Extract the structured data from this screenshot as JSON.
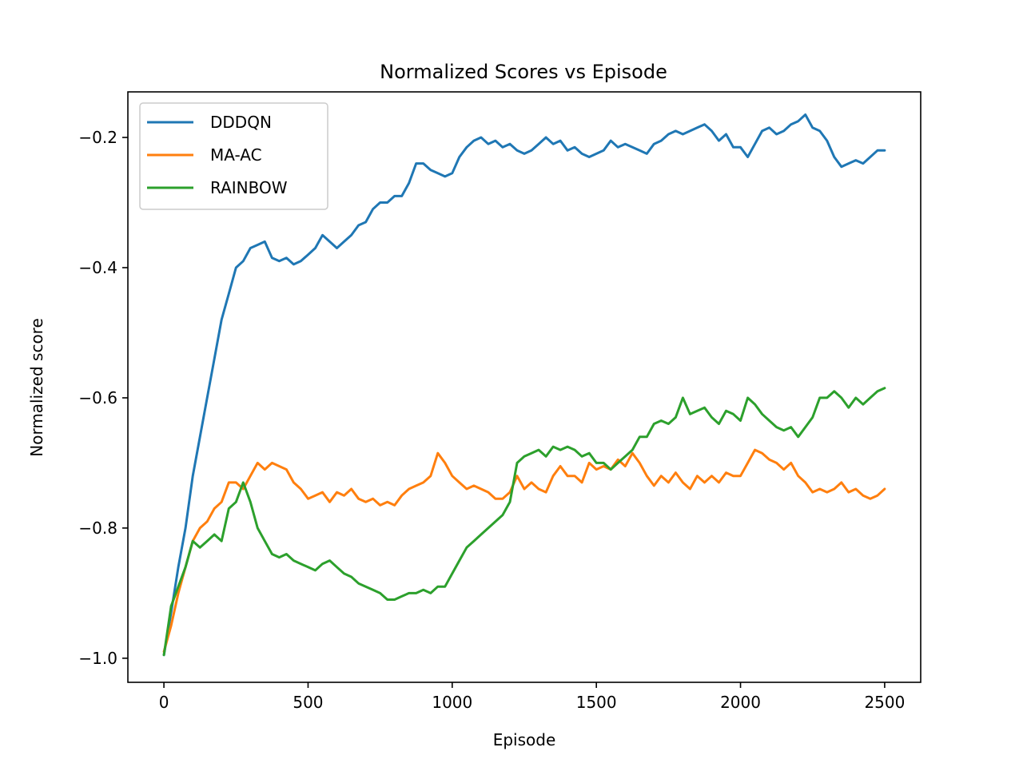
{
  "chart_data": {
    "type": "line",
    "title": "Normalized Scores vs Episode",
    "xlabel": "Episode",
    "ylabel": "Normalized score",
    "xlim": [
      -125,
      2625
    ],
    "ylim": [
      -1.037,
      -0.13
    ],
    "xticks": [
      0,
      500,
      1000,
      1500,
      2000,
      2500
    ],
    "xtick_labels": [
      "0",
      "500",
      "1000",
      "1500",
      "2000",
      "2500"
    ],
    "yticks": [
      -1.0,
      -0.8,
      -0.6,
      -0.4,
      -0.2
    ],
    "ytick_labels": [
      "−1.0",
      "−0.8",
      "−0.6",
      "−0.4",
      "−0.2"
    ],
    "grid": false,
    "legend_position": "upper-left",
    "series": [
      {
        "name": "DDDQN",
        "color": "#1f77b4",
        "points": [
          [
            0,
            -0.995
          ],
          [
            25,
            -0.93
          ],
          [
            50,
            -0.86
          ],
          [
            75,
            -0.8
          ],
          [
            100,
            -0.72
          ],
          [
            125,
            -0.66
          ],
          [
            150,
            -0.6
          ],
          [
            175,
            -0.54
          ],
          [
            200,
            -0.48
          ],
          [
            225,
            -0.44
          ],
          [
            250,
            -0.4
          ],
          [
            275,
            -0.39
          ],
          [
            300,
            -0.37
          ],
          [
            325,
            -0.365
          ],
          [
            350,
            -0.36
          ],
          [
            375,
            -0.385
          ],
          [
            400,
            -0.39
          ],
          [
            425,
            -0.385
          ],
          [
            450,
            -0.395
          ],
          [
            475,
            -0.39
          ],
          [
            500,
            -0.38
          ],
          [
            525,
            -0.37
          ],
          [
            550,
            -0.35
          ],
          [
            575,
            -0.36
          ],
          [
            600,
            -0.37
          ],
          [
            625,
            -0.36
          ],
          [
            650,
            -0.35
          ],
          [
            675,
            -0.335
          ],
          [
            700,
            -0.33
          ],
          [
            725,
            -0.31
          ],
          [
            750,
            -0.3
          ],
          [
            775,
            -0.3
          ],
          [
            800,
            -0.29
          ],
          [
            825,
            -0.29
          ],
          [
            850,
            -0.27
          ],
          [
            875,
            -0.24
          ],
          [
            900,
            -0.24
          ],
          [
            925,
            -0.25
          ],
          [
            950,
            -0.255
          ],
          [
            975,
            -0.26
          ],
          [
            1000,
            -0.255
          ],
          [
            1025,
            -0.23
          ],
          [
            1050,
            -0.215
          ],
          [
            1075,
            -0.205
          ],
          [
            1100,
            -0.2
          ],
          [
            1125,
            -0.21
          ],
          [
            1150,
            -0.205
          ],
          [
            1175,
            -0.215
          ],
          [
            1200,
            -0.21
          ],
          [
            1225,
            -0.22
          ],
          [
            1250,
            -0.225
          ],
          [
            1275,
            -0.22
          ],
          [
            1300,
            -0.21
          ],
          [
            1325,
            -0.2
          ],
          [
            1350,
            -0.21
          ],
          [
            1375,
            -0.205
          ],
          [
            1400,
            -0.22
          ],
          [
            1425,
            -0.215
          ],
          [
            1450,
            -0.225
          ],
          [
            1475,
            -0.23
          ],
          [
            1500,
            -0.225
          ],
          [
            1525,
            -0.22
          ],
          [
            1550,
            -0.205
          ],
          [
            1575,
            -0.215
          ],
          [
            1600,
            -0.21
          ],
          [
            1625,
            -0.215
          ],
          [
            1650,
            -0.22
          ],
          [
            1675,
            -0.225
          ],
          [
            1700,
            -0.21
          ],
          [
            1725,
            -0.205
          ],
          [
            1750,
            -0.195
          ],
          [
            1775,
            -0.19
          ],
          [
            1800,
            -0.195
          ],
          [
            1825,
            -0.19
          ],
          [
            1850,
            -0.185
          ],
          [
            1875,
            -0.18
          ],
          [
            1900,
            -0.19
          ],
          [
            1925,
            -0.205
          ],
          [
            1950,
            -0.195
          ],
          [
            1975,
            -0.215
          ],
          [
            2000,
            -0.215
          ],
          [
            2025,
            -0.23
          ],
          [
            2050,
            -0.21
          ],
          [
            2075,
            -0.19
          ],
          [
            2100,
            -0.185
          ],
          [
            2125,
            -0.195
          ],
          [
            2150,
            -0.19
          ],
          [
            2175,
            -0.18
          ],
          [
            2200,
            -0.175
          ],
          [
            2225,
            -0.165
          ],
          [
            2250,
            -0.185
          ],
          [
            2275,
            -0.19
          ],
          [
            2300,
            -0.205
          ],
          [
            2325,
            -0.23
          ],
          [
            2350,
            -0.245
          ],
          [
            2375,
            -0.24
          ],
          [
            2400,
            -0.235
          ],
          [
            2425,
            -0.24
          ],
          [
            2450,
            -0.23
          ],
          [
            2475,
            -0.22
          ],
          [
            2500,
            -0.22
          ]
        ]
      },
      {
        "name": "MA-AC",
        "color": "#ff7f0e",
        "points": [
          [
            0,
            -0.99
          ],
          [
            25,
            -0.95
          ],
          [
            50,
            -0.9
          ],
          [
            75,
            -0.86
          ],
          [
            100,
            -0.82
          ],
          [
            125,
            -0.8
          ],
          [
            150,
            -0.79
          ],
          [
            175,
            -0.77
          ],
          [
            200,
            -0.76
          ],
          [
            225,
            -0.73
          ],
          [
            250,
            -0.73
          ],
          [
            275,
            -0.74
          ],
          [
            300,
            -0.72
          ],
          [
            325,
            -0.7
          ],
          [
            350,
            -0.71
          ],
          [
            375,
            -0.7
          ],
          [
            400,
            -0.705
          ],
          [
            425,
            -0.71
          ],
          [
            450,
            -0.73
          ],
          [
            475,
            -0.74
          ],
          [
            500,
            -0.755
          ],
          [
            525,
            -0.75
          ],
          [
            550,
            -0.745
          ],
          [
            575,
            -0.76
          ],
          [
            600,
            -0.745
          ],
          [
            625,
            -0.75
          ],
          [
            650,
            -0.74
          ],
          [
            675,
            -0.755
          ],
          [
            700,
            -0.76
          ],
          [
            725,
            -0.755
          ],
          [
            750,
            -0.765
          ],
          [
            775,
            -0.76
          ],
          [
            800,
            -0.765
          ],
          [
            825,
            -0.75
          ],
          [
            850,
            -0.74
          ],
          [
            875,
            -0.735
          ],
          [
            900,
            -0.73
          ],
          [
            925,
            -0.72
          ],
          [
            950,
            -0.685
          ],
          [
            975,
            -0.7
          ],
          [
            1000,
            -0.72
          ],
          [
            1025,
            -0.73
          ],
          [
            1050,
            -0.74
          ],
          [
            1075,
            -0.735
          ],
          [
            1100,
            -0.74
          ],
          [
            1125,
            -0.745
          ],
          [
            1150,
            -0.755
          ],
          [
            1175,
            -0.755
          ],
          [
            1200,
            -0.745
          ],
          [
            1225,
            -0.72
          ],
          [
            1250,
            -0.74
          ],
          [
            1275,
            -0.73
          ],
          [
            1300,
            -0.74
          ],
          [
            1325,
            -0.745
          ],
          [
            1350,
            -0.72
          ],
          [
            1375,
            -0.705
          ],
          [
            1400,
            -0.72
          ],
          [
            1425,
            -0.72
          ],
          [
            1450,
            -0.73
          ],
          [
            1475,
            -0.7
          ],
          [
            1500,
            -0.71
          ],
          [
            1525,
            -0.705
          ],
          [
            1550,
            -0.71
          ],
          [
            1575,
            -0.695
          ],
          [
            1600,
            -0.705
          ],
          [
            1625,
            -0.685
          ],
          [
            1650,
            -0.7
          ],
          [
            1675,
            -0.72
          ],
          [
            1700,
            -0.735
          ],
          [
            1725,
            -0.72
          ],
          [
            1750,
            -0.73
          ],
          [
            1775,
            -0.715
          ],
          [
            1800,
            -0.73
          ],
          [
            1825,
            -0.74
          ],
          [
            1850,
            -0.72
          ],
          [
            1875,
            -0.73
          ],
          [
            1900,
            -0.72
          ],
          [
            1925,
            -0.73
          ],
          [
            1950,
            -0.715
          ],
          [
            1975,
            -0.72
          ],
          [
            2000,
            -0.72
          ],
          [
            2025,
            -0.7
          ],
          [
            2050,
            -0.68
          ],
          [
            2075,
            -0.685
          ],
          [
            2100,
            -0.695
          ],
          [
            2125,
            -0.7
          ],
          [
            2150,
            -0.71
          ],
          [
            2175,
            -0.7
          ],
          [
            2200,
            -0.72
          ],
          [
            2225,
            -0.73
          ],
          [
            2250,
            -0.745
          ],
          [
            2275,
            -0.74
          ],
          [
            2300,
            -0.745
          ],
          [
            2325,
            -0.74
          ],
          [
            2350,
            -0.73
          ],
          [
            2375,
            -0.745
          ],
          [
            2400,
            -0.74
          ],
          [
            2425,
            -0.75
          ],
          [
            2450,
            -0.755
          ],
          [
            2475,
            -0.75
          ],
          [
            2500,
            -0.74
          ]
        ]
      },
      {
        "name": "RAINBOW",
        "color": "#2ca02c",
        "points": [
          [
            0,
            -0.995
          ],
          [
            25,
            -0.92
          ],
          [
            50,
            -0.89
          ],
          [
            75,
            -0.86
          ],
          [
            100,
            -0.82
          ],
          [
            125,
            -0.83
          ],
          [
            150,
            -0.82
          ],
          [
            175,
            -0.81
          ],
          [
            200,
            -0.82
          ],
          [
            225,
            -0.77
          ],
          [
            250,
            -0.76
          ],
          [
            275,
            -0.73
          ],
          [
            300,
            -0.76
          ],
          [
            325,
            -0.8
          ],
          [
            350,
            -0.82
          ],
          [
            375,
            -0.84
          ],
          [
            400,
            -0.845
          ],
          [
            425,
            -0.84
          ],
          [
            450,
            -0.85
          ],
          [
            475,
            -0.855
          ],
          [
            500,
            -0.86
          ],
          [
            525,
            -0.865
          ],
          [
            550,
            -0.855
          ],
          [
            575,
            -0.85
          ],
          [
            600,
            -0.86
          ],
          [
            625,
            -0.87
          ],
          [
            650,
            -0.875
          ],
          [
            675,
            -0.885
          ],
          [
            700,
            -0.89
          ],
          [
            725,
            -0.895
          ],
          [
            750,
            -0.9
          ],
          [
            775,
            -0.91
          ],
          [
            800,
            -0.91
          ],
          [
            825,
            -0.905
          ],
          [
            850,
            -0.9
          ],
          [
            875,
            -0.9
          ],
          [
            900,
            -0.895
          ],
          [
            925,
            -0.9
          ],
          [
            950,
            -0.89
          ],
          [
            975,
            -0.89
          ],
          [
            1000,
            -0.87
          ],
          [
            1025,
            -0.85
          ],
          [
            1050,
            -0.83
          ],
          [
            1075,
            -0.82
          ],
          [
            1100,
            -0.81
          ],
          [
            1125,
            -0.8
          ],
          [
            1150,
            -0.79
          ],
          [
            1175,
            -0.78
          ],
          [
            1200,
            -0.76
          ],
          [
            1225,
            -0.7
          ],
          [
            1250,
            -0.69
          ],
          [
            1275,
            -0.685
          ],
          [
            1300,
            -0.68
          ],
          [
            1325,
            -0.69
          ],
          [
            1350,
            -0.675
          ],
          [
            1375,
            -0.68
          ],
          [
            1400,
            -0.675
          ],
          [
            1425,
            -0.68
          ],
          [
            1450,
            -0.69
          ],
          [
            1475,
            -0.685
          ],
          [
            1500,
            -0.7
          ],
          [
            1525,
            -0.7
          ],
          [
            1550,
            -0.71
          ],
          [
            1575,
            -0.7
          ],
          [
            1600,
            -0.69
          ],
          [
            1625,
            -0.68
          ],
          [
            1650,
            -0.66
          ],
          [
            1675,
            -0.66
          ],
          [
            1700,
            -0.64
          ],
          [
            1725,
            -0.635
          ],
          [
            1750,
            -0.64
          ],
          [
            1775,
            -0.63
          ],
          [
            1800,
            -0.6
          ],
          [
            1825,
            -0.625
          ],
          [
            1850,
            -0.62
          ],
          [
            1875,
            -0.615
          ],
          [
            1900,
            -0.63
          ],
          [
            1925,
            -0.64
          ],
          [
            1950,
            -0.62
          ],
          [
            1975,
            -0.625
          ],
          [
            2000,
            -0.635
          ],
          [
            2025,
            -0.6
          ],
          [
            2050,
            -0.61
          ],
          [
            2075,
            -0.625
          ],
          [
            2100,
            -0.635
          ],
          [
            2125,
            -0.645
          ],
          [
            2150,
            -0.65
          ],
          [
            2175,
            -0.645
          ],
          [
            2200,
            -0.66
          ],
          [
            2225,
            -0.645
          ],
          [
            2250,
            -0.63
          ],
          [
            2275,
            -0.6
          ],
          [
            2300,
            -0.6
          ],
          [
            2325,
            -0.59
          ],
          [
            2350,
            -0.6
          ],
          [
            2375,
            -0.615
          ],
          [
            2400,
            -0.6
          ],
          [
            2425,
            -0.61
          ],
          [
            2450,
            -0.6
          ],
          [
            2475,
            -0.59
          ],
          [
            2500,
            -0.585
          ]
        ]
      }
    ]
  }
}
